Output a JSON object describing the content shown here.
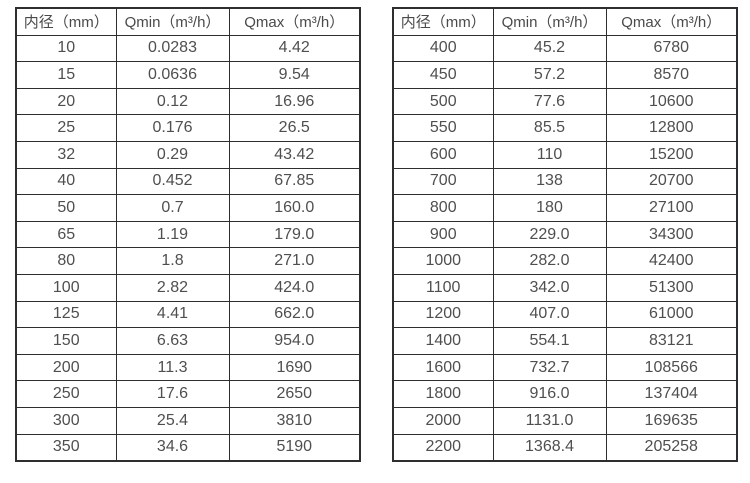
{
  "colors": {
    "border": "#2e2e2e",
    "text": "#4f4f4f",
    "background": "#ffffff"
  },
  "tables": [
    {
      "headers": [
        "内径（mm）",
        "Qmin（m³/h）",
        "Qmax（m³/h）"
      ],
      "rows": [
        [
          "10",
          "0.0283",
          "4.42"
        ],
        [
          "15",
          "0.0636",
          "9.54"
        ],
        [
          "20",
          "0.12",
          "16.96"
        ],
        [
          "25",
          "0.176",
          "26.5"
        ],
        [
          "32",
          "0.29",
          "43.42"
        ],
        [
          "40",
          "0.452",
          "67.85"
        ],
        [
          "50",
          "0.7",
          "160.0"
        ],
        [
          "65",
          "1.19",
          "179.0"
        ],
        [
          "80",
          "1.8",
          "271.0"
        ],
        [
          "100",
          "2.82",
          "424.0"
        ],
        [
          "125",
          "4.41",
          "662.0"
        ],
        [
          "150",
          "6.63",
          "954.0"
        ],
        [
          "200",
          "11.3",
          "1690"
        ],
        [
          "250",
          "17.6",
          "2650"
        ],
        [
          "300",
          "25.4",
          "3810"
        ],
        [
          "350",
          "34.6",
          "5190"
        ]
      ]
    },
    {
      "headers": [
        "内径（mm）",
        "Qmin（m³/h）",
        "Qmax（m³/h）"
      ],
      "rows": [
        [
          "400",
          "45.2",
          "6780"
        ],
        [
          "450",
          "57.2",
          "8570"
        ],
        [
          "500",
          "77.6",
          "10600"
        ],
        [
          "550",
          "85.5",
          "12800"
        ],
        [
          "600",
          "110",
          "15200"
        ],
        [
          "700",
          "138",
          "20700"
        ],
        [
          "800",
          "180",
          "27100"
        ],
        [
          "900",
          "229.0",
          "34300"
        ],
        [
          "1000",
          "282.0",
          "42400"
        ],
        [
          "1100",
          "342.0",
          "51300"
        ],
        [
          "1200",
          "407.0",
          "61000"
        ],
        [
          "1400",
          "554.1",
          "83121"
        ],
        [
          "1600",
          "732.7",
          "108566"
        ],
        [
          "1800",
          "916.0",
          "137404"
        ],
        [
          "2000",
          "1131.0",
          "169635"
        ],
        [
          "2200",
          "1368.4",
          "205258"
        ]
      ]
    }
  ]
}
